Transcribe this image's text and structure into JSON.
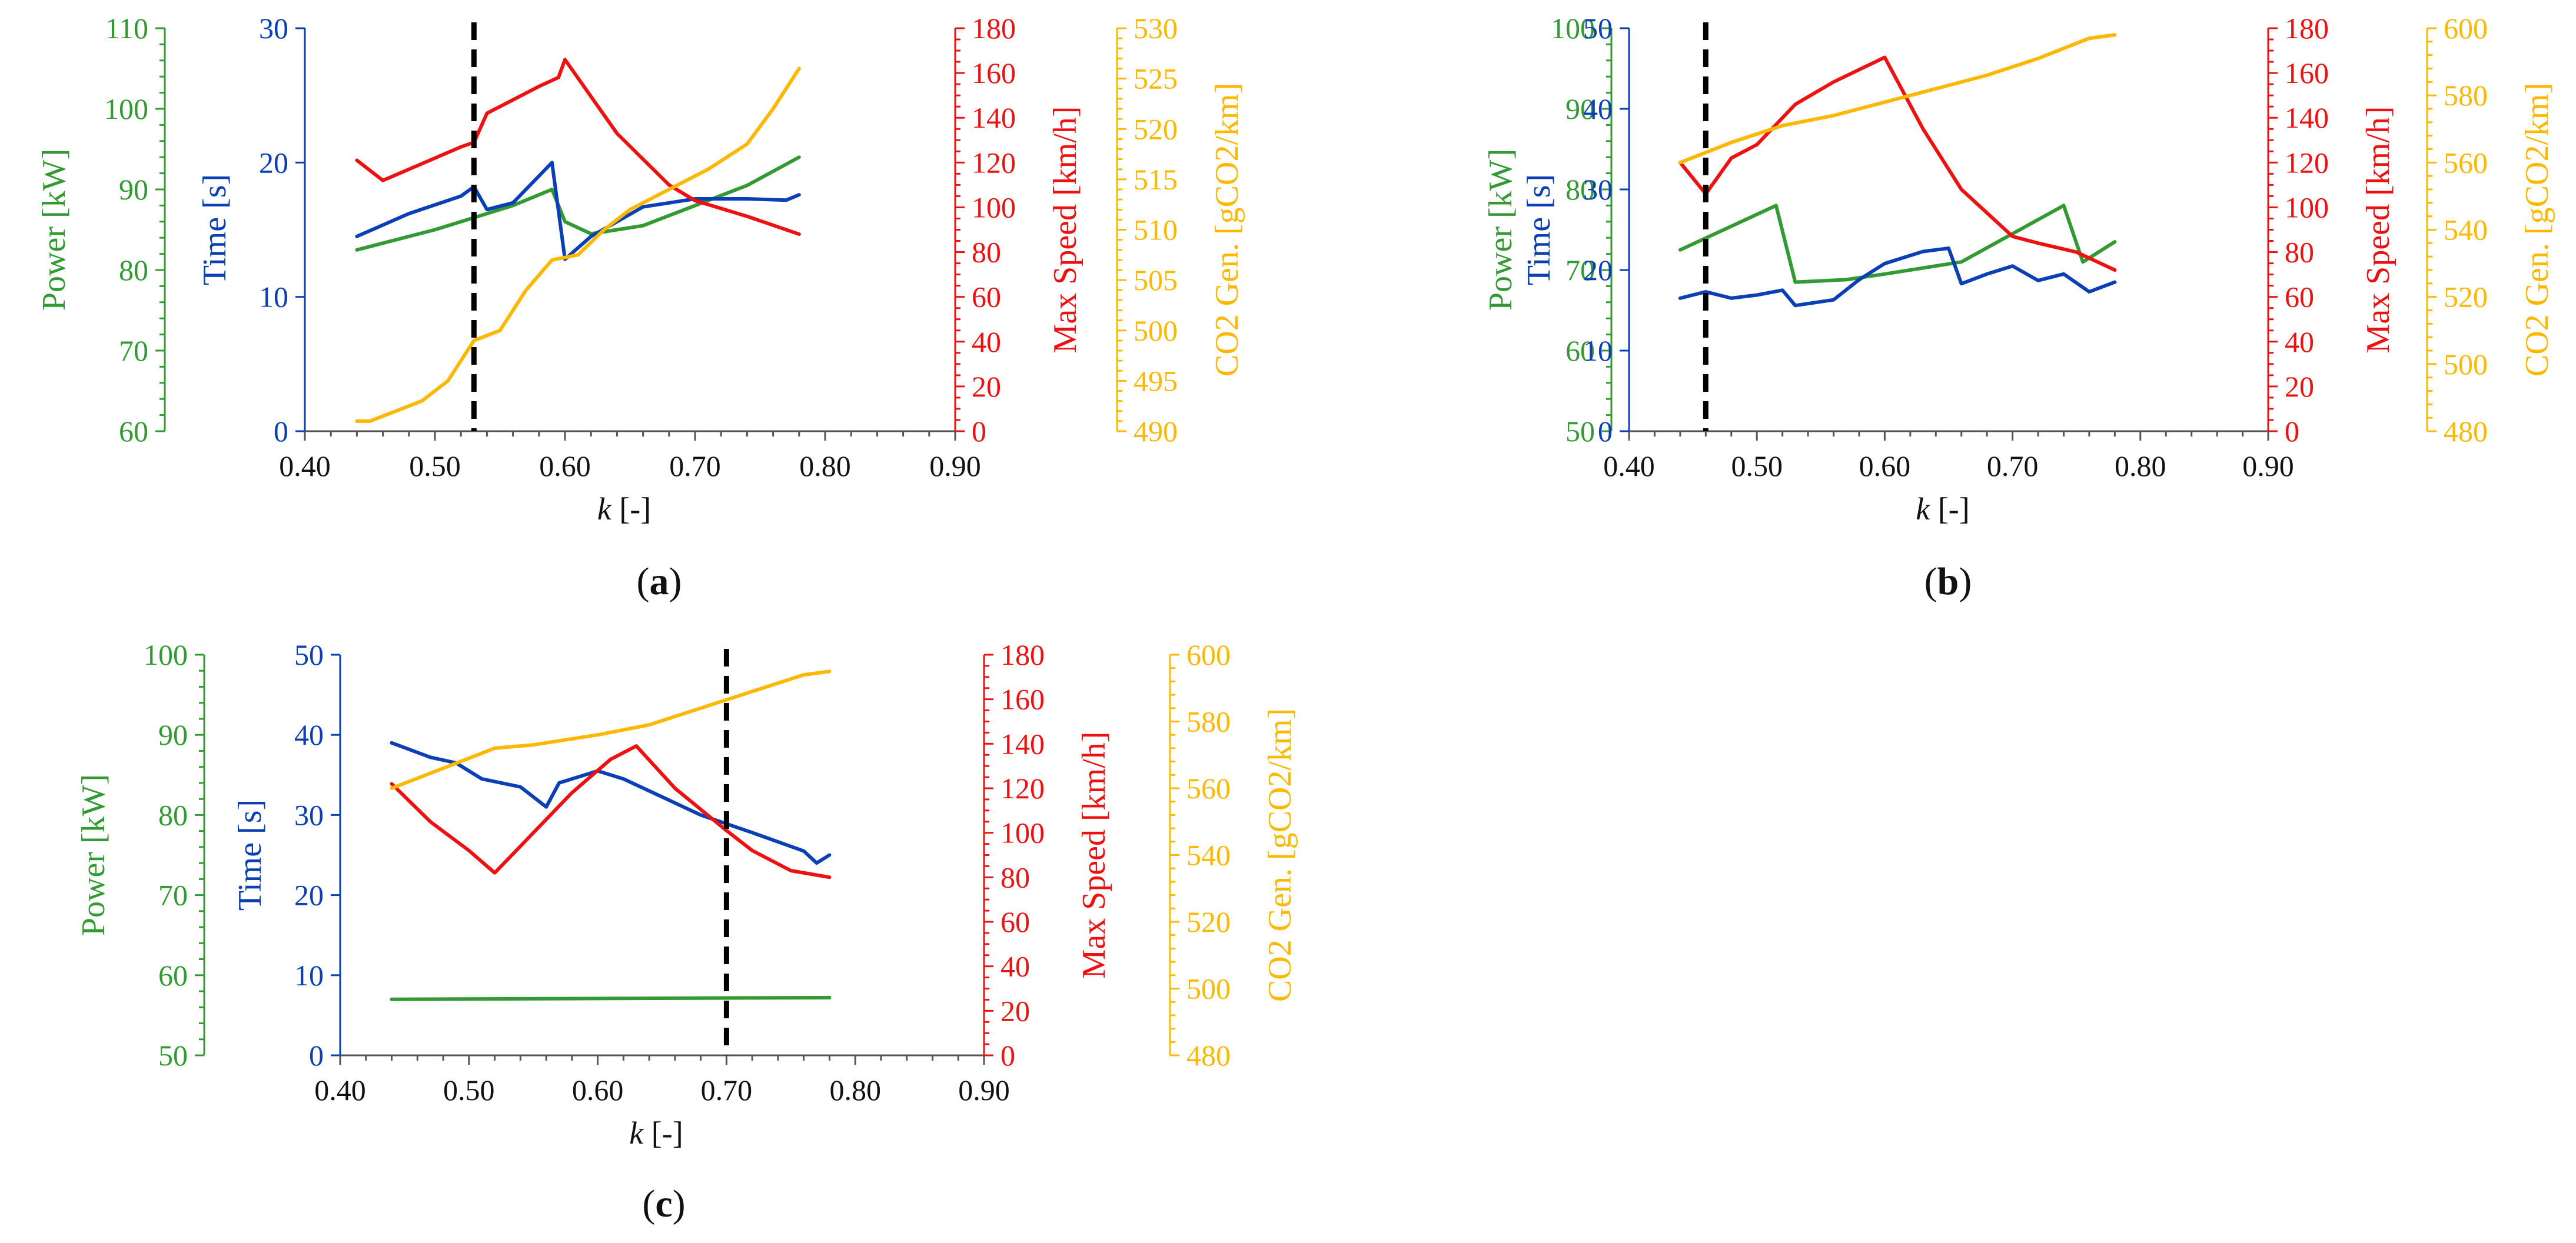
{
  "colors": {
    "power": "#339933",
    "time": "#0a3fb5",
    "speed": "#ee1111",
    "co2": "#ffb800",
    "axis": "#555555",
    "marker": "#000000"
  },
  "chart_data": [
    {
      "id": "a",
      "caption": "a",
      "type": "line",
      "xlabel_italic": "k",
      "xlabel_unit": " [-]",
      "xlim": [
        0.4,
        0.9
      ],
      "xticks": [
        "0.40",
        "0.50",
        "0.60",
        "0.70",
        "0.80",
        "0.90"
      ],
      "marker_x": 0.53,
      "axes": [
        {
          "key": "power",
          "label": "Power [kW]",
          "lim": [
            60,
            110
          ],
          "ticks": [
            "60",
            "70",
            "80",
            "90",
            "100",
            "110"
          ]
        },
        {
          "key": "time",
          "label": "Time [s]",
          "lim": [
            0,
            30
          ],
          "ticks": [
            "0",
            "10",
            "20",
            "30"
          ]
        },
        {
          "key": "speed",
          "label": "Max Speed [km/h]",
          "lim": [
            0,
            180
          ],
          "ticks": [
            "0",
            "20",
            "40",
            "60",
            "80",
            "100",
            "120",
            "140",
            "160",
            "180"
          ]
        },
        {
          "key": "co2",
          "label": "CO2 Gen. [gCO2/km]",
          "lim": [
            490,
            530
          ],
          "ticks": [
            "490",
            "495",
            "500",
            "505",
            "510",
            "515",
            "520",
            "525",
            "530"
          ]
        }
      ],
      "series": [
        {
          "axis": "power",
          "x": [
            0.44,
            0.5,
            0.56,
            0.59,
            0.6,
            0.62,
            0.66,
            0.7,
            0.74,
            0.78
          ],
          "y": [
            82.5,
            85,
            88,
            90,
            86,
            84.5,
            85.5,
            88,
            90.5,
            94
          ]
        },
        {
          "axis": "time",
          "x": [
            0.44,
            0.48,
            0.52,
            0.53,
            0.54,
            0.56,
            0.58,
            0.59,
            0.6,
            0.62,
            0.66,
            0.7,
            0.74,
            0.77,
            0.78
          ],
          "y": [
            14.5,
            16.2,
            17.5,
            18.2,
            16.5,
            17,
            19,
            20,
            12.8,
            14.5,
            16.7,
            17.3,
            17.3,
            17.2,
            17.6
          ]
        },
        {
          "axis": "speed",
          "x": [
            0.44,
            0.46,
            0.48,
            0.5,
            0.52,
            0.53,
            0.54,
            0.58,
            0.595,
            0.6,
            0.64,
            0.68,
            0.7,
            0.74,
            0.78
          ],
          "y": [
            121,
            112,
            117,
            122,
            127,
            129,
            142,
            154,
            158,
            166,
            133,
            110,
            103,
            96,
            88
          ]
        },
        {
          "axis": "co2",
          "x": [
            0.44,
            0.45,
            0.47,
            0.49,
            0.51,
            0.53,
            0.55,
            0.57,
            0.59,
            0.61,
            0.63,
            0.65,
            0.68,
            0.71,
            0.74,
            0.76,
            0.78
          ],
          "y": [
            491,
            491,
            492,
            493,
            495,
            499,
            500,
            504,
            507,
            507.5,
            510,
            512,
            514,
            516,
            518.5,
            522,
            526
          ]
        }
      ]
    },
    {
      "id": "b",
      "caption": "b",
      "type": "line",
      "xlabel_italic": "k",
      "xlabel_unit": " [-]",
      "xlim": [
        0.4,
        0.9
      ],
      "xticks": [
        "0.40",
        "0.50",
        "0.60",
        "0.70",
        "0.80",
        "0.90"
      ],
      "marker_x": 0.46,
      "axes": [
        {
          "key": "power",
          "label": "Power [kW]",
          "lim": [
            50,
            100
          ],
          "ticks": [
            "50",
            "60",
            "70",
            "80",
            "90",
            "100"
          ]
        },
        {
          "key": "time",
          "label": "Time [s]",
          "lim": [
            0,
            50
          ],
          "ticks": [
            "0",
            "10",
            "20",
            "30",
            "40",
            "50"
          ]
        },
        {
          "key": "speed",
          "label": "Max Speed [km/h]",
          "lim": [
            0,
            180
          ],
          "ticks": [
            "0",
            "20",
            "40",
            "60",
            "80",
            "100",
            "120",
            "140",
            "160",
            "180"
          ]
        },
        {
          "key": "co2",
          "label": "CO2 Gen. [gCO2/km]",
          "lim": [
            480,
            600
          ],
          "ticks": [
            "480",
            "500",
            "520",
            "540",
            "560",
            "580",
            "600"
          ]
        }
      ],
      "series": [
        {
          "axis": "power",
          "x": [
            0.44,
            0.515,
            0.53,
            0.57,
            0.6,
            0.66,
            0.74,
            0.755,
            0.78
          ],
          "y": [
            72.5,
            78,
            68.5,
            68.8,
            69.5,
            71,
            78,
            71,
            73.5
          ]
        },
        {
          "axis": "time",
          "x": [
            0.44,
            0.46,
            0.48,
            0.5,
            0.52,
            0.53,
            0.56,
            0.58,
            0.6,
            0.63,
            0.65,
            0.66,
            0.68,
            0.7,
            0.72,
            0.74,
            0.76,
            0.78
          ],
          "y": [
            16.5,
            17.3,
            16.5,
            16.9,
            17.5,
            15.6,
            16.3,
            18.8,
            20.8,
            22.3,
            22.7,
            18.3,
            19.5,
            20.5,
            18.7,
            19.5,
            17.3,
            18.5
          ]
        },
        {
          "axis": "speed",
          "x": [
            0.44,
            0.46,
            0.48,
            0.5,
            0.53,
            0.56,
            0.6,
            0.63,
            0.66,
            0.7,
            0.72,
            0.75,
            0.78
          ],
          "y": [
            120,
            106,
            122,
            128,
            146,
            156,
            167,
            135,
            108,
            87,
            84,
            80,
            72
          ]
        },
        {
          "axis": "co2",
          "x": [
            0.44,
            0.48,
            0.52,
            0.56,
            0.6,
            0.64,
            0.68,
            0.72,
            0.76,
            0.78
          ],
          "y": [
            560,
            566,
            571,
            574,
            578,
            582,
            586,
            591,
            597,
            598
          ]
        }
      ]
    },
    {
      "id": "c",
      "caption": "c",
      "type": "line",
      "xlabel_italic": "k",
      "xlabel_unit": " [-]",
      "xlim": [
        0.4,
        0.9
      ],
      "xticks": [
        "0.40",
        "0.50",
        "0.60",
        "0.70",
        "0.80",
        "0.90"
      ],
      "marker_x": 0.7,
      "axes": [
        {
          "key": "power",
          "label": "Power [kW]",
          "lim": [
            50,
            100
          ],
          "ticks": [
            "50",
            "60",
            "70",
            "80",
            "90",
            "100"
          ]
        },
        {
          "key": "time",
          "label": "Time [s]",
          "lim": [
            0,
            50
          ],
          "ticks": [
            "0",
            "10",
            "20",
            "30",
            "40",
            "50"
          ]
        },
        {
          "key": "speed",
          "label": "Max Speed [km/h]",
          "lim": [
            0,
            180
          ],
          "ticks": [
            "0",
            "20",
            "40",
            "60",
            "80",
            "100",
            "120",
            "140",
            "160",
            "180"
          ]
        },
        {
          "key": "co2",
          "label": "CO2 Gen. [gCO2/km]",
          "lim": [
            480,
            600
          ],
          "ticks": [
            "480",
            "500",
            "520",
            "540",
            "560",
            "580",
            "600"
          ]
        }
      ],
      "series": [
        {
          "axis": "power",
          "x": [
            0.44,
            0.78
          ],
          "y": [
            57,
            57.2
          ]
        },
        {
          "axis": "time",
          "x": [
            0.44,
            0.47,
            0.49,
            0.51,
            0.54,
            0.56,
            0.57,
            0.6,
            0.62,
            0.64,
            0.68,
            0.72,
            0.76,
            0.77,
            0.78
          ],
          "y": [
            39,
            37.2,
            36.5,
            34.5,
            33.5,
            31,
            34,
            35.5,
            34.5,
            33,
            30,
            27.8,
            25.5,
            24,
            25
          ]
        },
        {
          "axis": "speed",
          "x": [
            0.44,
            0.47,
            0.5,
            0.52,
            0.55,
            0.58,
            0.61,
            0.63,
            0.66,
            0.7,
            0.72,
            0.75,
            0.78
          ],
          "y": [
            122,
            105,
            92,
            82,
            100,
            118,
            133,
            139,
            120,
            101,
            92,
            83,
            80
          ]
        },
        {
          "axis": "co2",
          "x": [
            0.44,
            0.48,
            0.52,
            0.55,
            0.6,
            0.64,
            0.68,
            0.72,
            0.76,
            0.78
          ],
          "y": [
            560,
            566,
            572,
            573,
            576,
            579,
            584,
            589,
            594,
            595
          ]
        }
      ]
    }
  ]
}
